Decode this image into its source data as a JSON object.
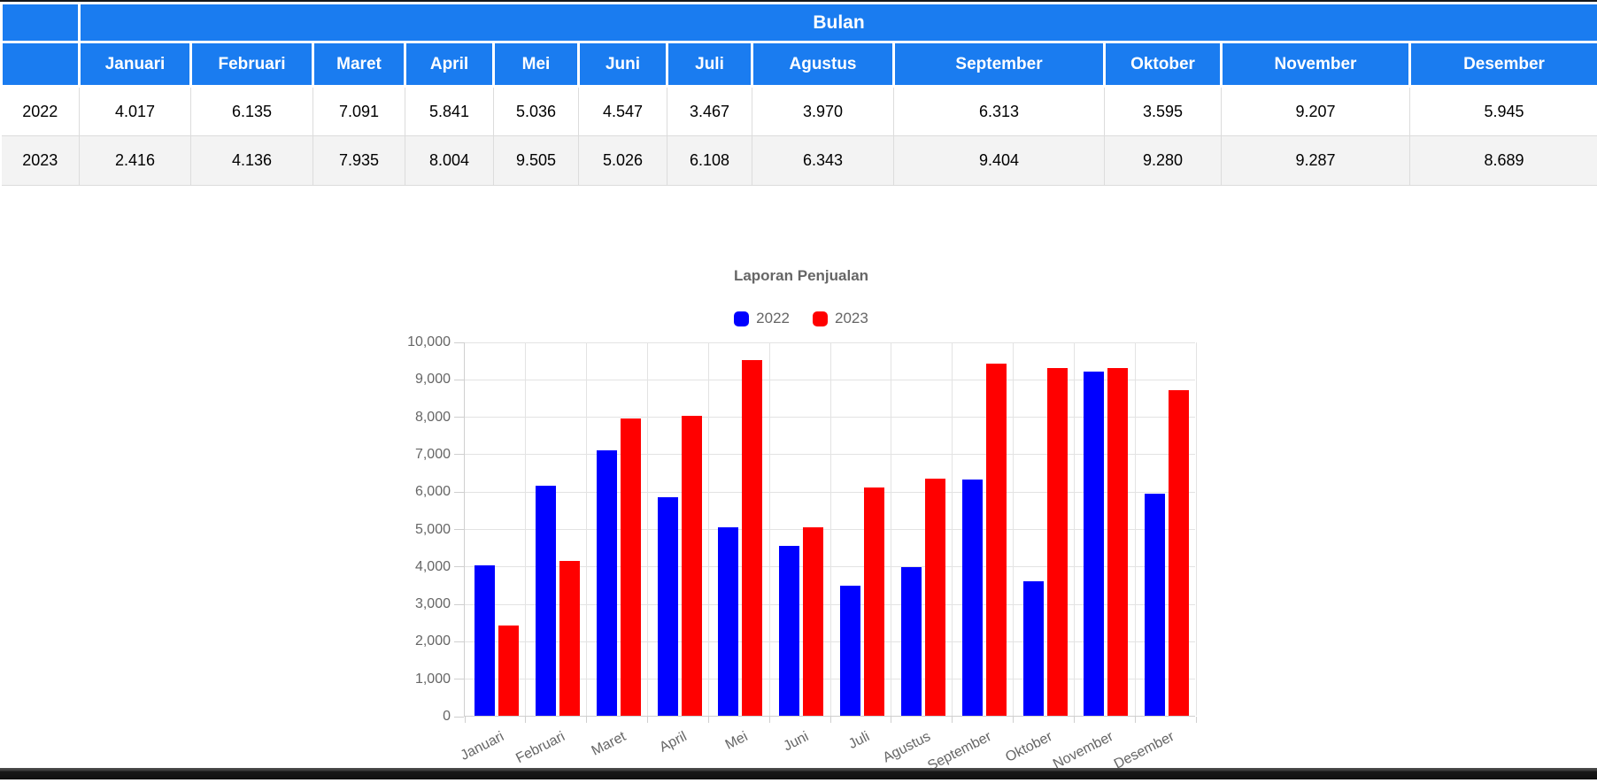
{
  "table": {
    "group_header": "Bulan",
    "months": [
      "Januari",
      "Februari",
      "Maret",
      "April",
      "Mei",
      "Juni",
      "Juli",
      "Agustus",
      "September",
      "Oktober",
      "November",
      "Desember"
    ],
    "rows": [
      {
        "year": "2022",
        "values": [
          "4.017",
          "6.135",
          "7.091",
          "5.841",
          "5.036",
          "4.547",
          "3.467",
          "3.970",
          "6.313",
          "3.595",
          "9.207",
          "5.945"
        ]
      },
      {
        "year": "2023",
        "values": [
          "2.416",
          "4.136",
          "7.935",
          "8.004",
          "9.505",
          "5.026",
          "6.108",
          "6.343",
          "9.404",
          "9.280",
          "9.287",
          "8.689"
        ]
      }
    ],
    "header_color": "#1a7cf0",
    "stripe_color": "#f3f3f3"
  },
  "chart_data": {
    "type": "bar",
    "title": "Laporan Penjualan",
    "categories": [
      "Januari",
      "Februari",
      "Maret",
      "April",
      "Mei",
      "Juni",
      "Juli",
      "Agustus",
      "September",
      "Oktober",
      "November",
      "Desember"
    ],
    "series": [
      {
        "name": "2022",
        "color": "#0000ff",
        "values": [
          4017,
          6135,
          7091,
          5841,
          5036,
          4547,
          3467,
          3970,
          6313,
          3595,
          9207,
          5945
        ]
      },
      {
        "name": "2023",
        "color": "#ff0000",
        "values": [
          2416,
          4136,
          7935,
          8004,
          9505,
          5026,
          6108,
          6343,
          9404,
          9280,
          9287,
          8689
        ]
      }
    ],
    "ylim": [
      0,
      10000
    ],
    "ytick_step": 1000,
    "grid": true,
    "legend_position": "top",
    "style": {
      "grid_color": "#e3e3e3",
      "axis_color": "#cfcfcf",
      "text_color": "#666666"
    }
  }
}
